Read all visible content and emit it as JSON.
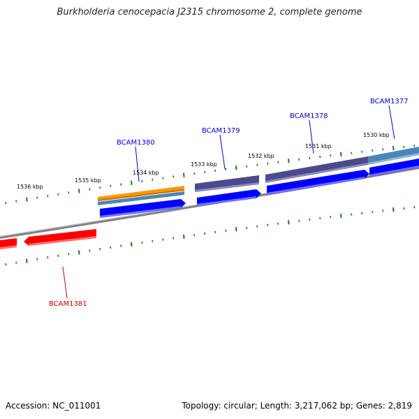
{
  "title": "Burkholderia cenocepacia J2315 chromosome 2, complete genome",
  "footer": {
    "accession": "Accession: NC_011001",
    "summary": "Topology: circular; Length: 3,217,062 bp; Genes: 2,819"
  },
  "colors": {
    "backbone": "#7f7f7f",
    "tick": "#1a7a1a",
    "cds_forward": "#0000ff",
    "cds_reverse": "#ff0000",
    "feature_orange": "#ff9900",
    "feature_steelblue": "#4a86b8",
    "feature_purple": "#4b4a8c",
    "label_forward": "#0000cc",
    "label_reverse": "#cc0000"
  },
  "kbp_labels": [
    "1536 kbp",
    "1535 kbp",
    "1534 kbp",
    "1533 kbp",
    "1532 kbp",
    "1531 kbp",
    "1530 kbp"
  ],
  "genes": [
    {
      "label": "BCAM1377",
      "strand": "+"
    },
    {
      "label": "BCAM1378",
      "strand": "+"
    },
    {
      "label": "BCAM1379",
      "strand": "+"
    },
    {
      "label": "BCAM1380",
      "strand": "+"
    },
    {
      "label": "BCAM1381",
      "strand": "-"
    }
  ]
}
